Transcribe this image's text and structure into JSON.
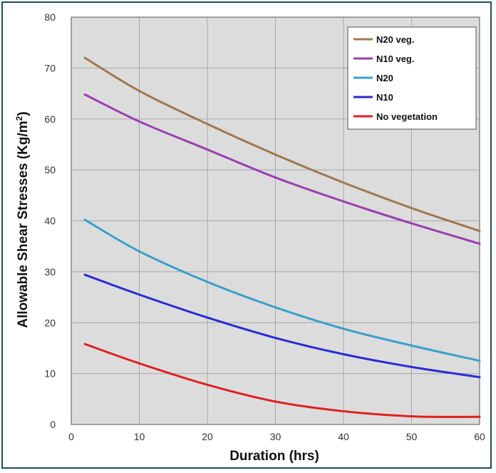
{
  "chart_data": {
    "type": "line",
    "title": "",
    "xlabel": "Duration (hrs)",
    "ylabel": "Allowable Shear Stresses (Kg/m",
    "ylabel_sup": "2",
    "ylabel_close": ")",
    "xlim": [
      0,
      60
    ],
    "ylim": [
      0,
      80
    ],
    "xticks": [
      0,
      10,
      20,
      30,
      40,
      50,
      60
    ],
    "yticks": [
      0,
      10,
      20,
      30,
      40,
      50,
      60,
      70,
      80
    ],
    "grid": true,
    "legend_position": "top-right",
    "x": [
      2,
      10,
      20,
      30,
      40,
      50,
      60
    ],
    "series": [
      {
        "name": "N20 veg.",
        "color": "#a07850",
        "values": [
          72.0,
          65.5,
          59.0,
          53.0,
          47.5,
          42.5,
          38.0
        ]
      },
      {
        "name": "N10 veg.",
        "color": "#9a3fb0",
        "values": [
          64.8,
          59.5,
          54.0,
          48.5,
          43.8,
          39.5,
          35.5
        ]
      },
      {
        "name": "N20",
        "color": "#3a9fcc",
        "values": [
          40.2,
          34.0,
          28.0,
          23.0,
          18.8,
          15.5,
          12.5
        ]
      },
      {
        "name": "N10",
        "color": "#2a2ad8",
        "values": [
          29.4,
          25.5,
          21.0,
          17.0,
          13.8,
          11.3,
          9.3
        ]
      },
      {
        "name": "No vegetation",
        "color": "#e02020",
        "values": [
          15.8,
          12.0,
          7.8,
          4.5,
          2.6,
          1.6,
          1.5
        ]
      }
    ]
  }
}
